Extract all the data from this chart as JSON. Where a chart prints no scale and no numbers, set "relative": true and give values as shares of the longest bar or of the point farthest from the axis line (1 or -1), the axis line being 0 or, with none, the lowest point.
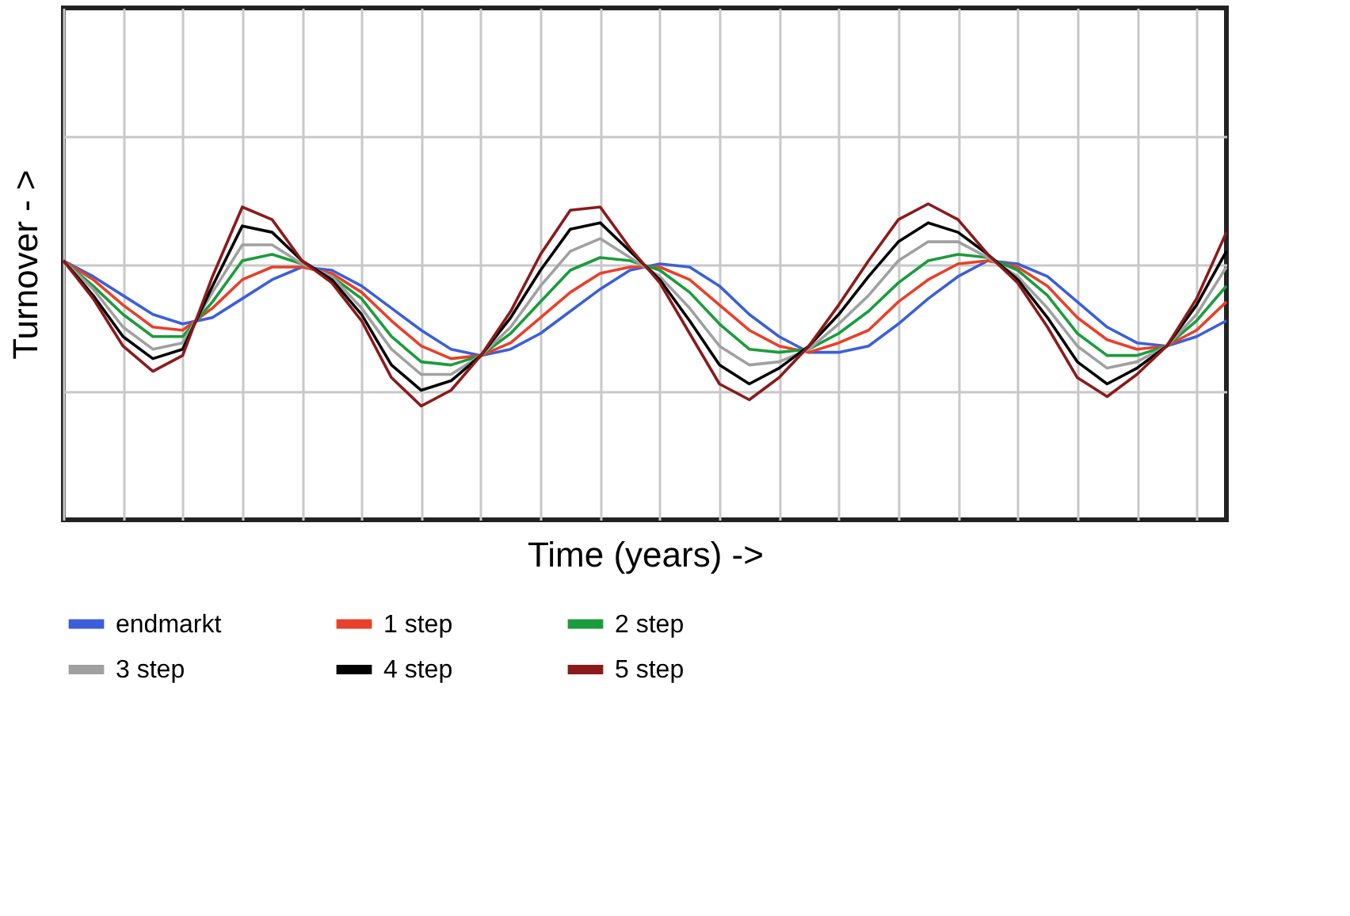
{
  "chart_data": {
    "type": "line",
    "relative": true,
    "xlabel": "Time (years) ->",
    "ylabel": "Turnover - >",
    "grid": true,
    "legend": "bottom",
    "tick_labels": false,
    "marker": "none",
    "line_style": "solid",
    "categories": [
      null,
      null,
      null,
      null,
      null,
      null,
      null,
      null,
      null,
      null,
      null,
      null,
      null,
      null,
      null,
      null,
      null,
      null,
      null,
      null,
      null,
      null,
      null,
      null,
      null,
      null,
      null,
      null,
      null,
      null,
      null,
      null,
      null,
      null,
      null,
      null,
      null,
      null,
      null,
      null
    ],
    "series": [
      {
        "name": "endmarkt",
        "color": "#3b5fd9",
        "values": [
          0.82,
          0.77,
          0.71,
          0.65,
          0.62,
          0.64,
          0.7,
          0.76,
          0.8,
          0.79,
          0.74,
          0.67,
          0.6,
          0.54,
          0.52,
          0.54,
          0.59,
          0.66,
          0.73,
          0.79,
          0.81,
          0.8,
          0.74,
          0.65,
          0.58,
          0.53,
          0.53,
          0.55,
          0.62,
          0.7,
          0.77,
          0.82,
          0.81,
          0.77,
          0.69,
          0.61,
          0.56,
          0.55,
          0.58,
          0.63
        ]
      },
      {
        "name": "1 step",
        "color": "#e8402a",
        "values": [
          0.82,
          0.76,
          0.68,
          0.61,
          0.6,
          0.67,
          0.76,
          0.8,
          0.8,
          0.78,
          0.72,
          0.63,
          0.55,
          0.51,
          0.52,
          0.56,
          0.64,
          0.72,
          0.78,
          0.8,
          0.8,
          0.76,
          0.68,
          0.6,
          0.55,
          0.53,
          0.56,
          0.6,
          0.69,
          0.76,
          0.81,
          0.82,
          0.8,
          0.74,
          0.64,
          0.57,
          0.54,
          0.55,
          0.6,
          0.69
        ]
      },
      {
        "name": "2 step",
        "color": "#1a9c3c",
        "values": [
          0.82,
          0.74,
          0.65,
          0.58,
          0.58,
          0.69,
          0.82,
          0.84,
          0.81,
          0.77,
          0.7,
          0.58,
          0.5,
          0.49,
          0.52,
          0.59,
          0.69,
          0.79,
          0.83,
          0.82,
          0.79,
          0.72,
          0.62,
          0.54,
          0.53,
          0.54,
          0.59,
          0.66,
          0.75,
          0.82,
          0.84,
          0.83,
          0.79,
          0.71,
          0.59,
          0.52,
          0.52,
          0.55,
          0.63,
          0.74
        ]
      },
      {
        "name": "3 step",
        "color": "#a0a0a0",
        "values": [
          0.82,
          0.73,
          0.61,
          0.54,
          0.56,
          0.72,
          0.87,
          0.87,
          0.81,
          0.77,
          0.67,
          0.54,
          0.46,
          0.46,
          0.52,
          0.61,
          0.74,
          0.85,
          0.89,
          0.83,
          0.77,
          0.67,
          0.55,
          0.49,
          0.5,
          0.54,
          0.62,
          0.71,
          0.82,
          0.88,
          0.88,
          0.83,
          0.77,
          0.67,
          0.55,
          0.48,
          0.5,
          0.55,
          0.65,
          0.8
        ]
      },
      {
        "name": "4 step",
        "color": "#000000",
        "values": [
          0.82,
          0.71,
          0.58,
          0.51,
          0.54,
          0.74,
          0.93,
          0.91,
          0.82,
          0.76,
          0.65,
          0.49,
          0.41,
          0.44,
          0.52,
          0.64,
          0.79,
          0.92,
          0.94,
          0.85,
          0.76,
          0.63,
          0.49,
          0.43,
          0.48,
          0.55,
          0.65,
          0.77,
          0.88,
          0.94,
          0.91,
          0.84,
          0.76,
          0.64,
          0.5,
          0.43,
          0.48,
          0.55,
          0.68,
          0.85
        ]
      },
      {
        "name": "5 step",
        "color": "#8b1a1a",
        "values": [
          0.82,
          0.7,
          0.55,
          0.47,
          0.52,
          0.77,
          0.99,
          0.95,
          0.82,
          0.75,
          0.63,
          0.45,
          0.36,
          0.41,
          0.52,
          0.66,
          0.84,
          0.98,
          0.99,
          0.86,
          0.75,
          0.59,
          0.43,
          0.38,
          0.45,
          0.55,
          0.68,
          0.82,
          0.95,
          1.0,
          0.95,
          0.84,
          0.75,
          0.61,
          0.45,
          0.39,
          0.46,
          0.55,
          0.7,
          0.91
        ]
      }
    ]
  }
}
